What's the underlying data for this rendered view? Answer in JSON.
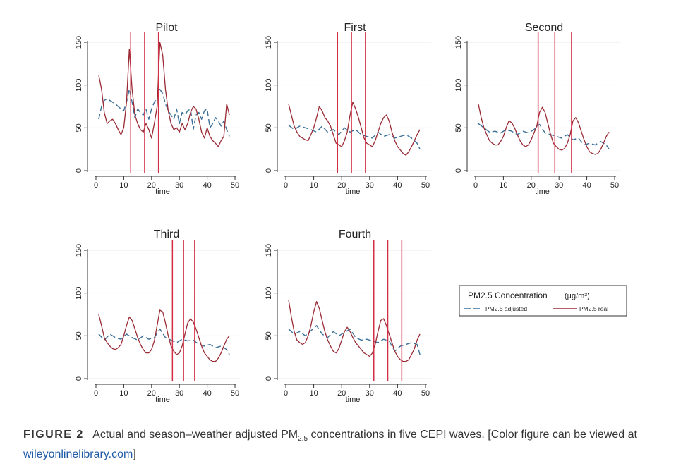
{
  "figure": {
    "colors": {
      "adjusted": "#3a6f98",
      "real": "#9a2b35",
      "wave_line": "#d22f47",
      "axis": "#333333",
      "grid": "#e8e8e8"
    }
  },
  "legend": {
    "title": "PM2.5 Concentration",
    "unit": "(µg/m³)",
    "adjusted_label": "PM2.5 adjusted",
    "real_label": "PM2.5 real"
  },
  "caption": {
    "label": "FIGURE 2",
    "text_before": "Actual and season–weather adjusted PM",
    "subscript": "2.5",
    "text_after": " concentrations in five CEPI waves. [Color figure can be viewed at ",
    "link": "wileyonlinelibrary.com",
    "text_end": "]"
  },
  "chart_data": [
    {
      "type": "line",
      "title": "Pilot",
      "xlabel": "time",
      "ylabel": "",
      "xlim": [
        0,
        50
      ],
      "ylim": [
        0,
        150
      ],
      "xticks": [
        0,
        10,
        20,
        30,
        40,
        50
      ],
      "yticks": [
        0,
        50,
        100,
        150
      ],
      "vlines": [
        12.5,
        17.5,
        22.5
      ],
      "series": [
        {
          "name": "PM2.5 adjusted",
          "style": "dashed",
          "x": [
            1,
            2,
            3,
            4,
            5,
            6,
            7,
            8,
            9,
            10,
            11,
            12,
            13,
            14,
            15,
            16,
            17,
            18,
            19,
            20,
            21,
            22,
            23,
            24,
            25,
            26,
            27,
            28,
            29,
            30,
            31,
            32,
            33,
            34,
            35,
            36,
            37,
            38,
            39,
            40,
            41,
            42,
            43,
            44,
            45,
            46,
            47,
            48
          ],
          "y": [
            60,
            75,
            82,
            84,
            82,
            80,
            78,
            75,
            72,
            70,
            80,
            95,
            80,
            62,
            72,
            68,
            65,
            72,
            60,
            72,
            80,
            85,
            95,
            90,
            78,
            70,
            65,
            60,
            72,
            55,
            68,
            65,
            70,
            72,
            48,
            65,
            68,
            60,
            70,
            72,
            50,
            55,
            62,
            58,
            52,
            58,
            48,
            40
          ]
        },
        {
          "name": "PM2.5 real",
          "style": "solid",
          "x": [
            1,
            2,
            3,
            4,
            5,
            6,
            7,
            8,
            9,
            10,
            11,
            12,
            13,
            14,
            15,
            16,
            17,
            18,
            19,
            20,
            21,
            22,
            23,
            24,
            25,
            26,
            27,
            28,
            29,
            30,
            31,
            32,
            33,
            34,
            35,
            36,
            37,
            38,
            39,
            40,
            41,
            42,
            43,
            44,
            45,
            46,
            47,
            48
          ],
          "y": [
            112,
            95,
            68,
            55,
            58,
            60,
            55,
            48,
            42,
            50,
            80,
            142,
            95,
            65,
            55,
            48,
            45,
            55,
            48,
            38,
            55,
            75,
            150,
            135,
            95,
            70,
            55,
            48,
            50,
            45,
            55,
            48,
            55,
            68,
            75,
            72,
            60,
            45,
            38,
            50,
            40,
            35,
            32,
            28,
            35,
            40,
            78,
            65
          ]
        }
      ]
    },
    {
      "type": "line",
      "title": "First",
      "xlabel": "time",
      "ylabel": "",
      "xlim": [
        0,
        50
      ],
      "ylim": [
        0,
        150
      ],
      "xticks": [
        0,
        10,
        20,
        30,
        40,
        50
      ],
      "yticks": [
        0,
        50,
        100,
        150
      ],
      "vlines": [
        18.5,
        23.5,
        28.5
      ],
      "series": [
        {
          "name": "PM2.5 adjusted",
          "style": "dashed",
          "x": [
            1,
            3,
            5,
            7,
            9,
            11,
            13,
            15,
            17,
            19,
            21,
            23,
            25,
            27,
            29,
            31,
            33,
            35,
            37,
            39,
            41,
            43,
            45,
            47,
            48
          ],
          "y": [
            53,
            48,
            52,
            50,
            48,
            45,
            52,
            45,
            48,
            42,
            50,
            45,
            48,
            42,
            40,
            38,
            45,
            40,
            42,
            38,
            40,
            42,
            38,
            32,
            25
          ]
        },
        {
          "name": "PM2.5 real",
          "style": "solid",
          "x": [
            1,
            2,
            3,
            4,
            5,
            6,
            7,
            8,
            9,
            10,
            11,
            12,
            13,
            14,
            15,
            16,
            17,
            18,
            19,
            20,
            21,
            22,
            23,
            24,
            25,
            26,
            27,
            28,
            29,
            30,
            31,
            32,
            33,
            34,
            35,
            36,
            37,
            38,
            39,
            40,
            41,
            42,
            43,
            44,
            45,
            46,
            47,
            48
          ],
          "y": [
            78,
            65,
            52,
            45,
            40,
            38,
            36,
            35,
            42,
            50,
            62,
            75,
            70,
            62,
            58,
            52,
            42,
            32,
            30,
            28,
            35,
            45,
            65,
            80,
            72,
            62,
            50,
            38,
            32,
            30,
            28,
            35,
            45,
            55,
            62,
            65,
            58,
            45,
            35,
            28,
            24,
            20,
            18,
            22,
            28,
            35,
            42,
            48
          ]
        }
      ]
    },
    {
      "type": "line",
      "title": "Second",
      "xlabel": "time",
      "ylabel": "",
      "xlim": [
        0,
        50
      ],
      "ylim": [
        0,
        150
      ],
      "xticks": [
        0,
        10,
        20,
        30,
        40,
        50
      ],
      "yticks": [
        0,
        50,
        100,
        150
      ],
      "vlines": [
        22.5,
        28.5,
        34.5
      ],
      "series": [
        {
          "name": "PM2.5 adjusted",
          "style": "dashed",
          "x": [
            1,
            3,
            5,
            7,
            9,
            11,
            13,
            15,
            17,
            19,
            21,
            23,
            25,
            27,
            29,
            31,
            33,
            35,
            37,
            39,
            41,
            43,
            45,
            47,
            48
          ],
          "y": [
            55,
            50,
            45,
            46,
            44,
            48,
            46,
            42,
            46,
            44,
            48,
            54,
            44,
            42,
            40,
            38,
            42,
            36,
            38,
            30,
            32,
            30,
            34,
            30,
            25
          ]
        },
        {
          "name": "PM2.5 real",
          "style": "solid",
          "x": [
            1,
            2,
            3,
            4,
            5,
            6,
            7,
            8,
            9,
            10,
            11,
            12,
            13,
            14,
            15,
            16,
            17,
            18,
            19,
            20,
            21,
            22,
            23,
            24,
            25,
            26,
            27,
            28,
            29,
            30,
            31,
            32,
            33,
            34,
            35,
            36,
            37,
            38,
            39,
            40,
            41,
            42,
            43,
            44,
            45,
            46,
            47,
            48
          ],
          "y": [
            78,
            62,
            50,
            42,
            35,
            32,
            30,
            30,
            34,
            40,
            50,
            58,
            56,
            50,
            42,
            35,
            30,
            28,
            30,
            36,
            44,
            52,
            68,
            74,
            68,
            55,
            42,
            32,
            28,
            25,
            24,
            26,
            32,
            42,
            58,
            62,
            56,
            46,
            36,
            28,
            22,
            20,
            19,
            20,
            25,
            32,
            40,
            45
          ]
        }
      ]
    },
    {
      "type": "line",
      "title": "Third",
      "xlabel": "time",
      "ylabel": "",
      "xlim": [
        0,
        50
      ],
      "ylim": [
        0,
        150
      ],
      "xticks": [
        0,
        10,
        20,
        30,
        40,
        50
      ],
      "yticks": [
        0,
        50,
        100,
        150
      ],
      "vlines": [
        27.5,
        31.5,
        35.5
      ],
      "series": [
        {
          "name": "PM2.5 adjusted",
          "style": "dashed",
          "x": [
            1,
            3,
            5,
            7,
            9,
            11,
            13,
            15,
            17,
            19,
            21,
            23,
            25,
            27,
            29,
            31,
            33,
            35,
            37,
            39,
            41,
            43,
            45,
            47,
            48
          ],
          "y": [
            52,
            45,
            52,
            48,
            46,
            52,
            48,
            45,
            50,
            46,
            48,
            58,
            48,
            45,
            42,
            46,
            44,
            45,
            40,
            38,
            40,
            36,
            38,
            34,
            28
          ]
        },
        {
          "name": "PM2.5 real",
          "style": "solid",
          "x": [
            1,
            2,
            3,
            4,
            5,
            6,
            7,
            8,
            9,
            10,
            11,
            12,
            13,
            14,
            15,
            16,
            17,
            18,
            19,
            20,
            21,
            22,
            23,
            24,
            25,
            26,
            27,
            28,
            29,
            30,
            31,
            32,
            33,
            34,
            35,
            36,
            37,
            38,
            39,
            40,
            41,
            42,
            43,
            44,
            45,
            46,
            47,
            48
          ],
          "y": [
            75,
            62,
            48,
            42,
            38,
            35,
            34,
            36,
            40,
            50,
            62,
            72,
            68,
            58,
            48,
            40,
            34,
            30,
            30,
            34,
            44,
            62,
            80,
            78,
            65,
            50,
            38,
            32,
            28,
            30,
            38,
            52,
            65,
            70,
            66,
            58,
            48,
            38,
            30,
            26,
            22,
            20,
            20,
            24,
            30,
            38,
            46,
            50
          ]
        }
      ]
    },
    {
      "type": "line",
      "title": "Fourth",
      "xlabel": "time",
      "ylabel": "",
      "xlim": [
        0,
        50
      ],
      "ylim": [
        0,
        150
      ],
      "xticks": [
        0,
        10,
        20,
        30,
        40,
        50
      ],
      "yticks": [
        0,
        50,
        100,
        150
      ],
      "vlines": [
        31.5,
        36.5,
        41.5
      ],
      "series": [
        {
          "name": "PM2.5 adjusted",
          "style": "dashed",
          "x": [
            1,
            3,
            5,
            7,
            9,
            11,
            13,
            15,
            17,
            19,
            21,
            23,
            25,
            27,
            29,
            31,
            33,
            35,
            37,
            39,
            41,
            43,
            45,
            47,
            48
          ],
          "y": [
            58,
            52,
            55,
            50,
            56,
            62,
            52,
            48,
            55,
            50,
            54,
            58,
            48,
            45,
            46,
            44,
            42,
            46,
            44,
            32,
            38,
            40,
            42,
            40,
            28
          ]
        },
        {
          "name": "PM2.5 real",
          "style": "solid",
          "x": [
            1,
            2,
            3,
            4,
            5,
            6,
            7,
            8,
            9,
            10,
            11,
            12,
            13,
            14,
            15,
            16,
            17,
            18,
            19,
            20,
            21,
            22,
            23,
            24,
            25,
            26,
            27,
            28,
            29,
            30,
            31,
            32,
            33,
            34,
            35,
            36,
            37,
            38,
            39,
            40,
            41,
            42,
            43,
            44,
            45,
            46,
            47,
            48
          ],
          "y": [
            92,
            72,
            55,
            45,
            42,
            40,
            42,
            50,
            62,
            78,
            90,
            82,
            68,
            55,
            45,
            38,
            32,
            30,
            35,
            45,
            55,
            60,
            55,
            48,
            42,
            38,
            34,
            30,
            28,
            26,
            30,
            40,
            55,
            68,
            70,
            62,
            52,
            42,
            32,
            26,
            22,
            20,
            20,
            22,
            28,
            35,
            45,
            52
          ]
        }
      ]
    }
  ]
}
